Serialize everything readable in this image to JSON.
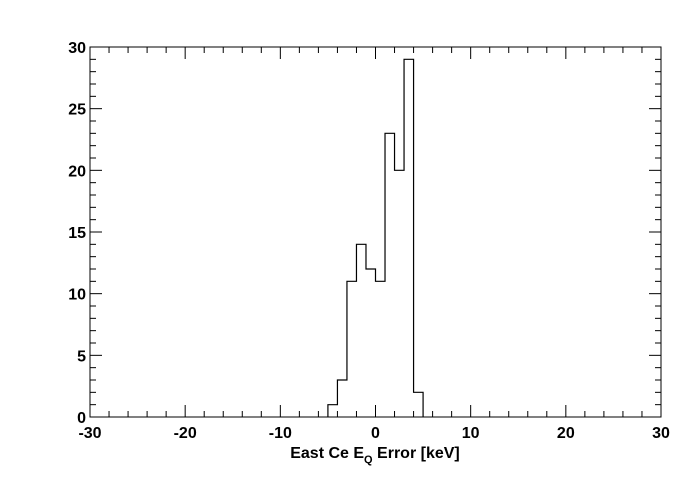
{
  "chart_data": {
    "type": "histogram",
    "title": "",
    "xlabel_parts": {
      "prefix": "East Ce E",
      "subscript": "Q",
      "suffix": " Error [keV]"
    },
    "ylabel": "",
    "xlim": [
      -30,
      30
    ],
    "ylim": [
      0,
      30
    ],
    "x_ticks": [
      -30,
      -20,
      -10,
      0,
      10,
      20,
      30
    ],
    "y_ticks": [
      0,
      5,
      10,
      15,
      20,
      25,
      30
    ],
    "bin_width": 1,
    "bins": [
      {
        "x0": -5,
        "x1": -4,
        "count": 1
      },
      {
        "x0": -4,
        "x1": -3,
        "count": 3
      },
      {
        "x0": -3,
        "x1": -2,
        "count": 11
      },
      {
        "x0": -2,
        "x1": -1,
        "count": 14
      },
      {
        "x0": -1,
        "x1": 0,
        "count": 12
      },
      {
        "x0": 0,
        "x1": 1,
        "count": 11
      },
      {
        "x0": 1,
        "x1": 2,
        "count": 23
      },
      {
        "x0": 2,
        "x1": 3,
        "count": 20
      },
      {
        "x0": 3,
        "x1": 4,
        "count": 29
      },
      {
        "x0": 4,
        "x1": 5,
        "count": 2
      }
    ],
    "line_color": "#000000",
    "frame_color": "#000000",
    "grid": false,
    "legend": "none"
  }
}
